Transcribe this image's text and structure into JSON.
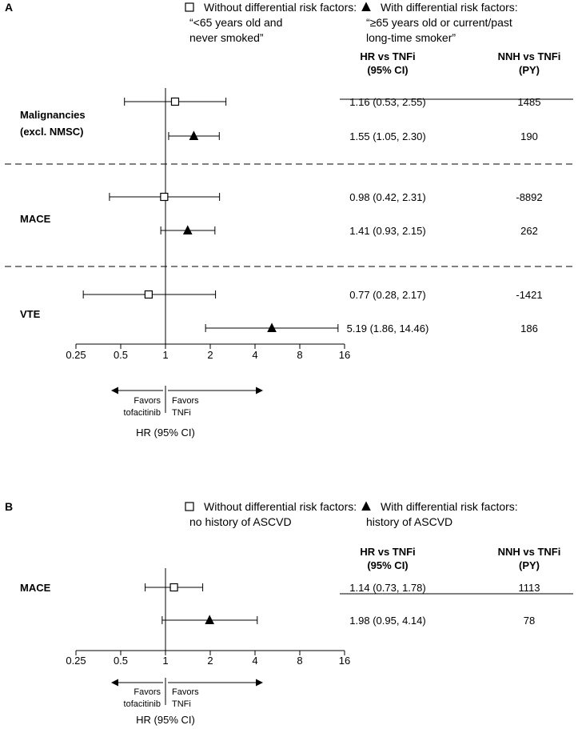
{
  "chart_data": [
    {
      "panel_label": "A",
      "type": "forest",
      "scale": "log2",
      "xlim": [
        0.25,
        16
      ],
      "ticks": [
        0.25,
        0.5,
        1,
        2,
        4,
        8,
        16
      ],
      "tick_labels": [
        "0.25",
        "0.5",
        "1",
        "2",
        "4",
        "8",
        "16"
      ],
      "xlabel": "HR (95% CI)",
      "favors_left": [
        "Favors",
        "tofacitinib"
      ],
      "favors_right": [
        "Favors",
        "TNFi"
      ],
      "legend": {
        "without": {
          "symbol": "open-square",
          "line1": "Without differential risk factors:",
          "line2": "“<65 years old and",
          "line3": "never smoked”"
        },
        "with": {
          "symbol": "filled-triangle",
          "line1": "With differential risk factors:",
          "line2": "“≥65 years old or current/past",
          "line3": "long-time smoker”"
        }
      },
      "columns": {
        "hr": [
          "HR vs TNFi",
          "(95% CI)"
        ],
        "nnh": [
          "NNH vs TNFi",
          "(PY)"
        ]
      },
      "groups": [
        {
          "label": [
            "Malignancies",
            "(excl. NMSC)"
          ],
          "rows": [
            {
              "marker": "square",
              "hr": 1.16,
              "lo": 0.53,
              "hi": 2.55,
              "hr_text": "1.16 (0.53, 2.55)",
              "nnh": "1485"
            },
            {
              "marker": "triangle",
              "hr": 1.55,
              "lo": 1.05,
              "hi": 2.3,
              "hr_text": "1.55 (1.05, 2.30)",
              "nnh": "190"
            }
          ]
        },
        {
          "label": [
            "MACE"
          ],
          "rows": [
            {
              "marker": "square",
              "hr": 0.98,
              "lo": 0.42,
              "hi": 2.31,
              "hr_text": "0.98 (0.42, 2.31)",
              "nnh": "-8892"
            },
            {
              "marker": "triangle",
              "hr": 1.41,
              "lo": 0.93,
              "hi": 2.15,
              "hr_text": "1.41 (0.93, 2.15)",
              "nnh": "262"
            }
          ]
        },
        {
          "label": [
            "VTE"
          ],
          "rows": [
            {
              "marker": "square",
              "hr": 0.77,
              "lo": 0.28,
              "hi": 2.17,
              "hr_text": "0.77 (0.28, 2.17)",
              "nnh": "-1421"
            },
            {
              "marker": "triangle",
              "hr": 5.19,
              "lo": 1.86,
              "hi": 14.46,
              "hr_text": "5.19 (1.86, 14.46)",
              "nnh": "186"
            }
          ]
        }
      ]
    },
    {
      "panel_label": "B",
      "type": "forest",
      "scale": "log2",
      "xlim": [
        0.25,
        16
      ],
      "ticks": [
        0.25,
        0.5,
        1,
        2,
        4,
        8,
        16
      ],
      "tick_labels": [
        "0.25",
        "0.5",
        "1",
        "2",
        "4",
        "8",
        "16"
      ],
      "xlabel": "HR (95% CI)",
      "favors_left": [
        "Favors",
        "tofacitinib"
      ],
      "favors_right": [
        "Favors",
        "TNFi"
      ],
      "legend": {
        "without": {
          "symbol": "open-square",
          "line1": "Without differential risk factors:",
          "line2": "no history of ASCVD"
        },
        "with": {
          "symbol": "filled-triangle",
          "line1": "With differential risk factors:",
          "line2": "history of ASCVD"
        }
      },
      "columns": {
        "hr": [
          "HR vs TNFi",
          "(95% CI)"
        ],
        "nnh": [
          "NNH vs TNFi",
          "(PY)"
        ]
      },
      "groups": [
        {
          "label": [
            "MACE"
          ],
          "rows": [
            {
              "marker": "square",
              "hr": 1.14,
              "lo": 0.73,
              "hi": 1.78,
              "hr_text": "1.14 (0.73, 1.78)",
              "nnh": "1113"
            },
            {
              "marker": "triangle",
              "hr": 1.98,
              "lo": 0.95,
              "hi": 4.14,
              "hr_text": "1.98 (0.95, 4.14)",
              "nnh": "78"
            }
          ]
        }
      ]
    }
  ]
}
